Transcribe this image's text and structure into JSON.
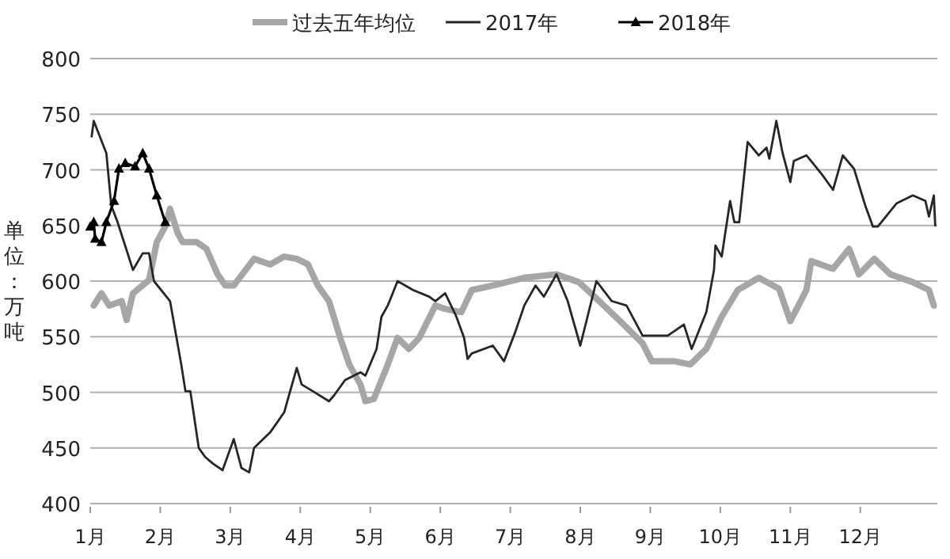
{
  "chart_data": {
    "type": "line",
    "ylabel": "单位：万吨",
    "legend": "top",
    "grid": "y",
    "xlim": [
      1,
      13.1
    ],
    "xticks": [
      {
        "value": 1,
        "label": "1月"
      },
      {
        "value": 2,
        "label": "2月"
      },
      {
        "value": 3,
        "label": "3月"
      },
      {
        "value": 4,
        "label": "4月"
      },
      {
        "value": 5,
        "label": "5月"
      },
      {
        "value": 6,
        "label": "6月"
      },
      {
        "value": 7,
        "label": "7月"
      },
      {
        "value": 8,
        "label": "8月"
      },
      {
        "value": 9,
        "label": "9月"
      },
      {
        "value": 10,
        "label": "10月"
      },
      {
        "value": 11,
        "label": "11月"
      },
      {
        "value": 12,
        "label": "12月"
      }
    ],
    "ylim": [
      400,
      800
    ],
    "yticks": [
      400,
      450,
      500,
      550,
      600,
      650,
      700,
      750,
      800
    ],
    "series": [
      {
        "name": "过去五年均位",
        "color": "#a6a6a6",
        "marker": "none",
        "x": [
          1.05,
          1.16,
          1.27,
          1.45,
          1.52,
          1.61,
          1.84,
          1.95,
          2.07,
          2.14,
          2.25,
          2.32,
          2.52,
          2.66,
          2.82,
          2.93,
          3.05,
          3.34,
          3.57,
          3.77,
          3.95,
          4.11,
          4.25,
          4.41,
          4.57,
          4.7,
          4.86,
          4.93,
          5.05,
          5.25,
          5.39,
          5.55,
          5.7,
          5.93,
          6.07,
          6.3,
          6.45,
          6.75,
          7.2,
          7.66,
          7.98,
          8.27,
          8.57,
          8.89,
          9.02,
          9.34,
          9.57,
          9.8,
          10.02,
          10.25,
          10.55,
          10.84,
          11.0,
          11.23,
          11.3,
          11.61,
          11.84,
          11.98,
          12.2,
          12.43,
          12.75,
          12.98,
          13.05
        ],
        "values": [
          578,
          589,
          578,
          582,
          565,
          589,
          601,
          635,
          649,
          665,
          643,
          635,
          635,
          629,
          606,
          596,
          596,
          620,
          615,
          622,
          620,
          615,
          596,
          582,
          549,
          525,
          507,
          492,
          494,
          525,
          549,
          539,
          549,
          578,
          575,
          572,
          592,
          596,
          603,
          606,
          599,
          582,
          564,
          544,
          528,
          528,
          525,
          539,
          568,
          592,
          603,
          593,
          564,
          592,
          618,
          611,
          629,
          606,
          620,
          606,
          599,
          592,
          578
        ]
      },
      {
        "name": "2017年",
        "color": "#262626",
        "marker": "none",
        "x": [
          1.02,
          1.05,
          1.23,
          1.3,
          1.39,
          1.61,
          1.75,
          1.84,
          1.91,
          2.14,
          2.3,
          2.36,
          2.43,
          2.55,
          2.64,
          2.75,
          2.89,
          3.05,
          3.16,
          3.27,
          3.34,
          3.57,
          3.77,
          3.95,
          4.02,
          4.18,
          4.41,
          4.48,
          4.64,
          4.86,
          4.93,
          5.09,
          5.16,
          5.25,
          5.39,
          5.61,
          5.84,
          5.93,
          6.07,
          6.23,
          6.34,
          6.39,
          6.45,
          6.75,
          6.91,
          7.07,
          7.2,
          7.36,
          7.48,
          7.66,
          7.82,
          8.0,
          8.23,
          8.45,
          8.66,
          8.89,
          9.25,
          9.48,
          9.59,
          9.8,
          9.91,
          9.93,
          10.02,
          10.14,
          10.2,
          10.27,
          10.39,
          10.55,
          10.66,
          10.7,
          10.8,
          10.89,
          11.0,
          11.05,
          11.23,
          11.45,
          11.61,
          11.75,
          11.91,
          12.07,
          12.18,
          12.25,
          12.52,
          12.75,
          12.93,
          12.98,
          13.05,
          13.07
        ],
        "values": [
          730,
          744,
          715,
          668,
          653,
          610,
          625,
          625,
          600,
          582,
          525,
          501,
          501,
          450,
          442,
          436,
          430,
          458,
          432,
          428,
          450,
          464,
          482,
          522,
          507,
          501,
          492,
          497,
          511,
          518,
          515,
          539,
          568,
          578,
          600,
          592,
          586,
          582,
          589,
          568,
          549,
          530,
          535,
          542,
          528,
          554,
          578,
          596,
          586,
          606,
          582,
          542,
          600,
          582,
          578,
          551,
          551,
          561,
          539,
          572,
          610,
          632,
          622,
          672,
          653,
          653,
          725,
          713,
          720,
          710,
          744,
          715,
          689,
          708,
          713,
          696,
          682,
          713,
          701,
          668,
          649,
          649,
          670,
          677,
          672,
          658,
          677,
          650
        ]
      },
      {
        "name": "2018年",
        "color": "#000000",
        "marker": "triangle",
        "x": [
          1.0,
          1.05,
          1.07,
          1.16,
          1.23,
          1.34,
          1.41,
          1.5,
          1.64,
          1.75,
          1.84,
          1.95,
          2.07
        ],
        "values": [
          649,
          653,
          638,
          635,
          653,
          672,
          701,
          706,
          703,
          715,
          701,
          677,
          653
        ]
      }
    ]
  }
}
